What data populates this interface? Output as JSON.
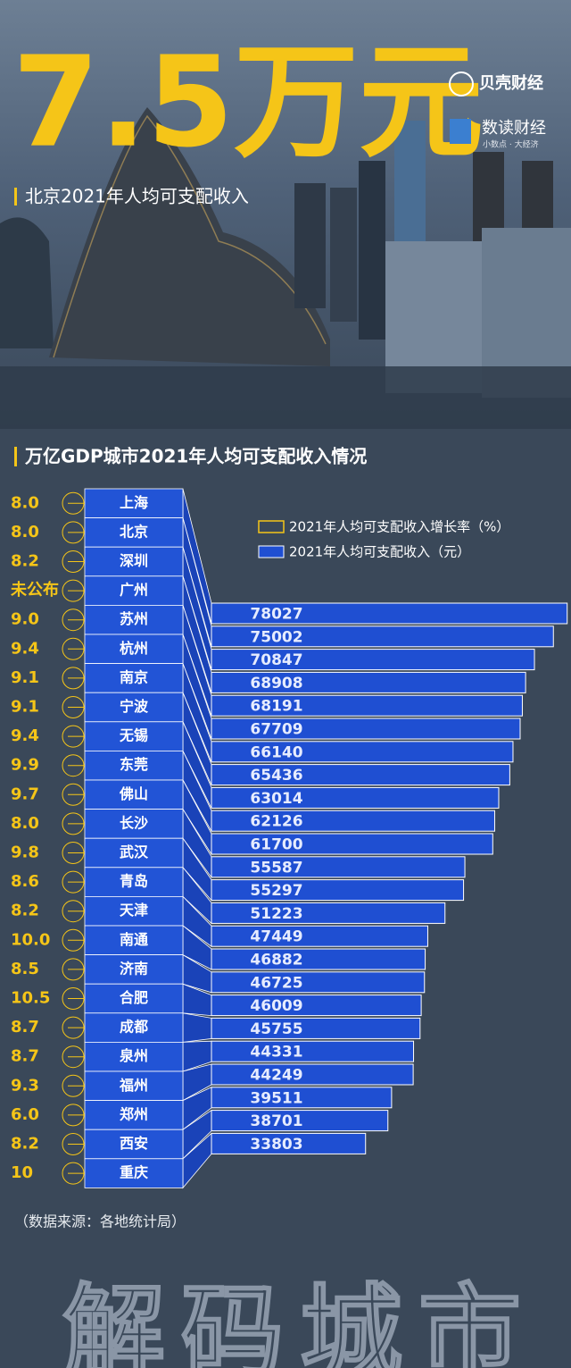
{
  "header": {
    "title": "7.5万元",
    "subtitle": "北京2021年人均可支配收入",
    "logos": [
      "贝壳财经",
      "数读财经",
      "小数点 · 大经济"
    ]
  },
  "chart_data": {
    "type": "bar",
    "title": "万亿GDP城市2021年人均可支配收入情况",
    "categories": [
      "上海",
      "北京",
      "深圳",
      "广州",
      "苏州",
      "杭州",
      "南京",
      "宁波",
      "无锡",
      "东莞",
      "佛山",
      "长沙",
      "武汉",
      "青岛",
      "天津",
      "南通",
      "济南",
      "合肥",
      "成都",
      "泉州",
      "福州",
      "郑州",
      "西安",
      "重庆"
    ],
    "series": [
      {
        "name": "2021年人均可支配收入增长率（%）",
        "color": "#f5c518",
        "values": [
          8,
          8,
          8.2,
          null,
          9,
          9.4,
          9.1,
          9.1,
          9.4,
          9.9,
          9.7,
          8,
          9.8,
          8.6,
          8.2,
          10,
          8.5,
          10.5,
          8.7,
          8.7,
          9.3,
          6,
          8.2,
          10
        ],
        "value_labels": [
          "8.0",
          "8.0",
          "8.2",
          "未公布",
          "9.0",
          "9.4",
          "9.1",
          "9.1",
          "9.4",
          "9.9",
          "9.7",
          "8.0",
          "9.8",
          "8.6",
          "8.2",
          "10.0",
          "8.5",
          "10.5",
          "8.7",
          "8.7",
          "9.3",
          "6.0",
          "8.2",
          "10"
        ]
      },
      {
        "name": "2021年人均可支配收入（元）",
        "color": "#1f4fd2",
        "values": [
          78027,
          75002,
          70847,
          68908,
          68191,
          67709,
          66140,
          65436,
          63014,
          62126,
          61700,
          55587,
          55297,
          51223,
          47449,
          46882,
          46725,
          46009,
          45755,
          44331,
          44249,
          39511,
          38701,
          33803
        ]
      }
    ]
  },
  "source": "（数据来源：各地统计局）",
  "footer": "解码城市"
}
